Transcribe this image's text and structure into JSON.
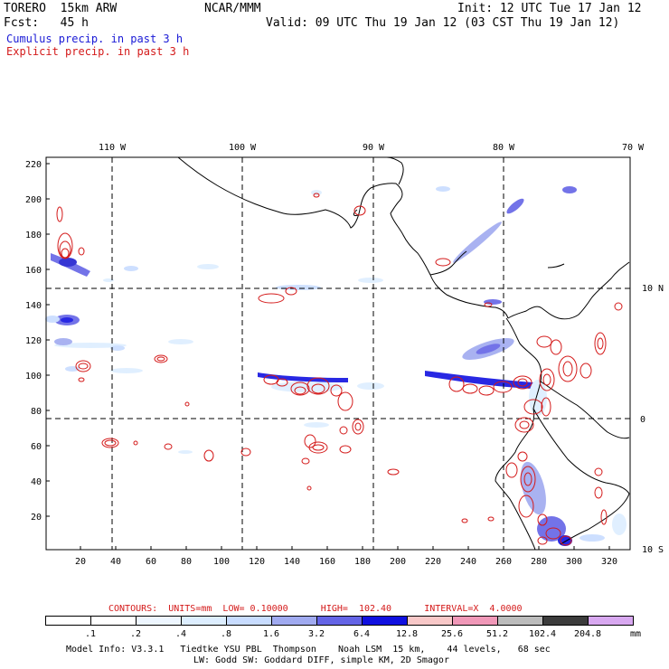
{
  "header": {
    "model": "TORERO  15km ARW",
    "org": "NCAR/MMM",
    "init": "Init: 12 UTC Tue 17 Jan 12",
    "fcst": "Fcst:   45 h",
    "valid": "Valid: 09 UTC Thu 19 Jan 12 (03 CST Thu 19 Jan 12)",
    "field1": "Cumulus precip. in past 3 h",
    "field2": "Explicit precip. in past 3 h"
  },
  "axes": {
    "top_lon": [
      "110 W",
      "100 W",
      "90 W",
      "80 W",
      "70 W"
    ],
    "right_lat": [
      "10 N",
      "0",
      "10 S"
    ],
    "left_y": [
      "220",
      "200",
      "180",
      "160",
      "140",
      "120",
      "100",
      "80",
      "60",
      "40",
      "20"
    ],
    "bottom_x": [
      "20",
      "40",
      "60",
      "80",
      "100",
      "120",
      "140",
      "160",
      "180",
      "200",
      "220",
      "240",
      "260",
      "280",
      "300",
      "320"
    ]
  },
  "contours_info": {
    "text": "CONTOURS:  UNITS=mm  LOW= 0.10000      HIGH=  102.40      INTERVAL=X  4.0000"
  },
  "colorbar": {
    "labels": [
      ".1",
      ".2",
      ".4",
      ".8",
      "1.6",
      "3.2",
      "6.4",
      "12.8",
      "25.6",
      "51.2",
      "102.4",
      "204.8"
    ],
    "unit": "mm",
    "colors": [
      "#ffffff",
      "#ffffff",
      "#eef6ff",
      "#ddeeff",
      "#c8dcff",
      "#a0aaf0",
      "#6464e6",
      "#1010e0",
      "#f8c8c8",
      "#f098b8",
      "#bcbcbc",
      "#3c3c3c",
      "#d8a8f0"
    ]
  },
  "footer": {
    "line1": "Model Info: V3.3.1   Tiedtke YSU PBL  Thompson    Noah LSM  15 km,    44 levels,   68 sec",
    "line2": "LW: Godd SW: Goddard DIFF, simple KM, 2D Smagor"
  }
}
